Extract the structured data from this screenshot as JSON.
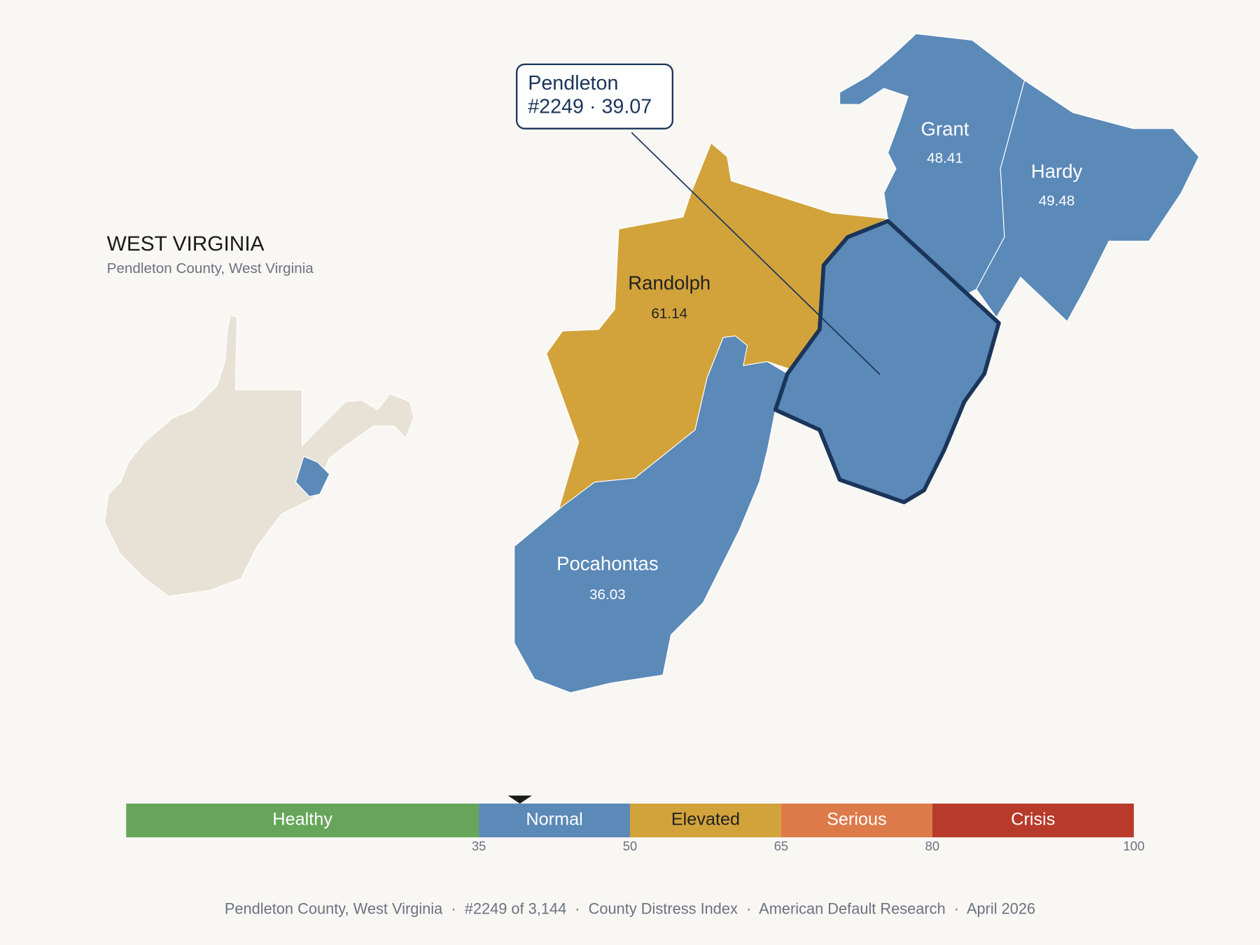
{
  "title": "WEST VIRGINIA",
  "subtitle": "Pendleton County, West Virginia",
  "callout": {
    "line1": "Pendleton",
    "line2": "#2249 · 39.07"
  },
  "counties": [
    {
      "name": "Grant",
      "value": 48.41
    },
    {
      "name": "Hardy",
      "value": 49.48
    },
    {
      "name": "Randolph",
      "value": 61.14
    },
    {
      "name": "Pocahontas",
      "value": 36.03
    }
  ],
  "scale": {
    "min": 0,
    "max": 100,
    "ticks": [
      35,
      50,
      65,
      80,
      100
    ],
    "marker": 39.07,
    "bands": [
      {
        "label": "Healthy",
        "color": "#67a65a",
        "text_color": "#ffffff"
      },
      {
        "label": "Normal",
        "color": "#5b89b8",
        "text_color": "#ffffff"
      },
      {
        "label": "Elevated",
        "color": "#d2a33b",
        "text_color": "#222222"
      },
      {
        "label": "Serious",
        "color": "#dd7a49",
        "text_color": "#ffffff"
      },
      {
        "label": "Crisis",
        "color": "#b83a2b",
        "text_color": "#ffffff"
      }
    ]
  },
  "footer": "Pendleton County, West Virginia  ·  #2249 of 3,144  ·  County Distress Index  ·  American Default Research  ·  April 2026"
}
